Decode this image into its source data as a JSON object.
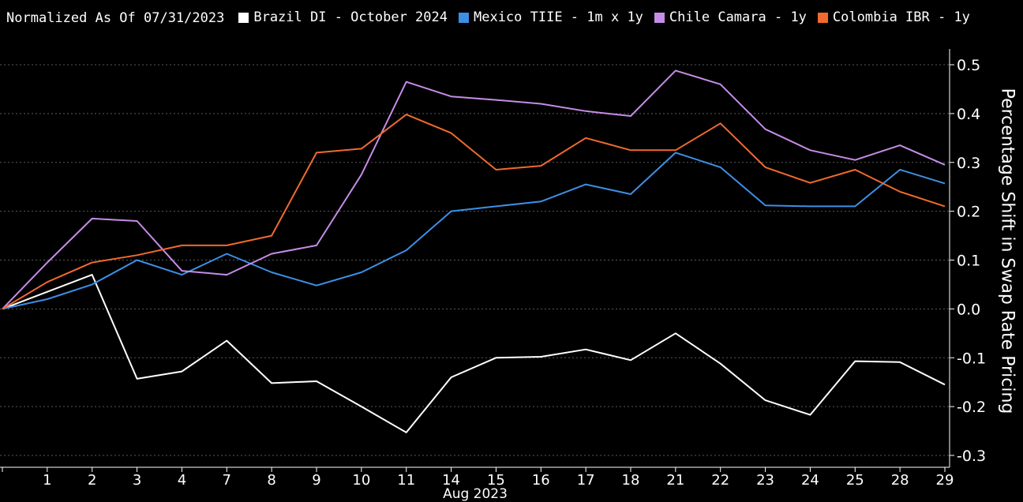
{
  "legend_note": "Normalized As Of 07/31/2023",
  "chart_data": {
    "type": "line",
    "ylabel": "Percentage Shift in Swap Rate Pricing",
    "xlabel": "Aug 2023",
    "ylim": [
      -0.3,
      0.5
    ],
    "yticks": [
      0.5,
      0.4,
      0.3,
      0.2,
      0.1,
      0.0,
      -0.1,
      -0.2,
      -0.3
    ],
    "ytick_labels": [
      "0.5",
      "0.4",
      "0.3",
      "0.2",
      "0.1",
      "0.0",
      "-0.1",
      "-0.2",
      "-0.3"
    ],
    "grid": true,
    "legend_position": "top-left",
    "categories": [
      "31",
      "1",
      "2",
      "3",
      "4",
      "7",
      "8",
      "9",
      "10",
      "11",
      "14",
      "15",
      "16",
      "17",
      "18",
      "21",
      "22",
      "23",
      "24",
      "25",
      "28",
      "29"
    ],
    "category_labels_shown": [
      "",
      "1",
      "2",
      "3",
      "4",
      "7",
      "8",
      "9",
      "10",
      "11",
      "14",
      "15",
      "16",
      "17",
      "18",
      "21",
      "22",
      "23",
      "24",
      "25",
      "28",
      "29"
    ],
    "series": [
      {
        "name": "Brazil DI - October 2024",
        "color": "#ffffff",
        "values": [
          0.0,
          0.035,
          0.07,
          -0.143,
          -0.128,
          -0.065,
          -0.152,
          -0.148,
          -0.2,
          -0.253,
          -0.14,
          -0.1,
          -0.098,
          -0.083,
          -0.105,
          -0.05,
          -0.112,
          -0.187,
          -0.217,
          -0.107,
          -0.109,
          -0.155
        ]
      },
      {
        "name": "Mexico TIIE - 1m x 1y",
        "color": "#3d8fe6",
        "values": [
          0.0,
          0.02,
          0.05,
          0.1,
          0.07,
          0.113,
          0.075,
          0.048,
          0.075,
          0.12,
          0.2,
          0.21,
          0.22,
          0.255,
          0.235,
          0.32,
          0.29,
          0.212,
          0.21,
          0.21,
          0.285,
          0.257
        ]
      },
      {
        "name": "Chile Camara - 1y",
        "color": "#c78ce8",
        "values": [
          0.0,
          0.095,
          0.185,
          0.18,
          0.078,
          0.07,
          0.113,
          0.13,
          0.275,
          0.465,
          0.435,
          0.428,
          0.42,
          0.405,
          0.395,
          0.488,
          0.46,
          0.368,
          0.325,
          0.305,
          0.335,
          0.295
        ]
      },
      {
        "name": "Colombia IBR - 1y",
        "color": "#f06a2f",
        "values": [
          0.0,
          0.055,
          0.095,
          0.11,
          0.13,
          0.13,
          0.15,
          0.32,
          0.328,
          0.398,
          0.36,
          0.285,
          0.293,
          0.35,
          0.325,
          0.325,
          0.38,
          0.29,
          0.258,
          0.285,
          0.24,
          0.21
        ]
      }
    ]
  }
}
